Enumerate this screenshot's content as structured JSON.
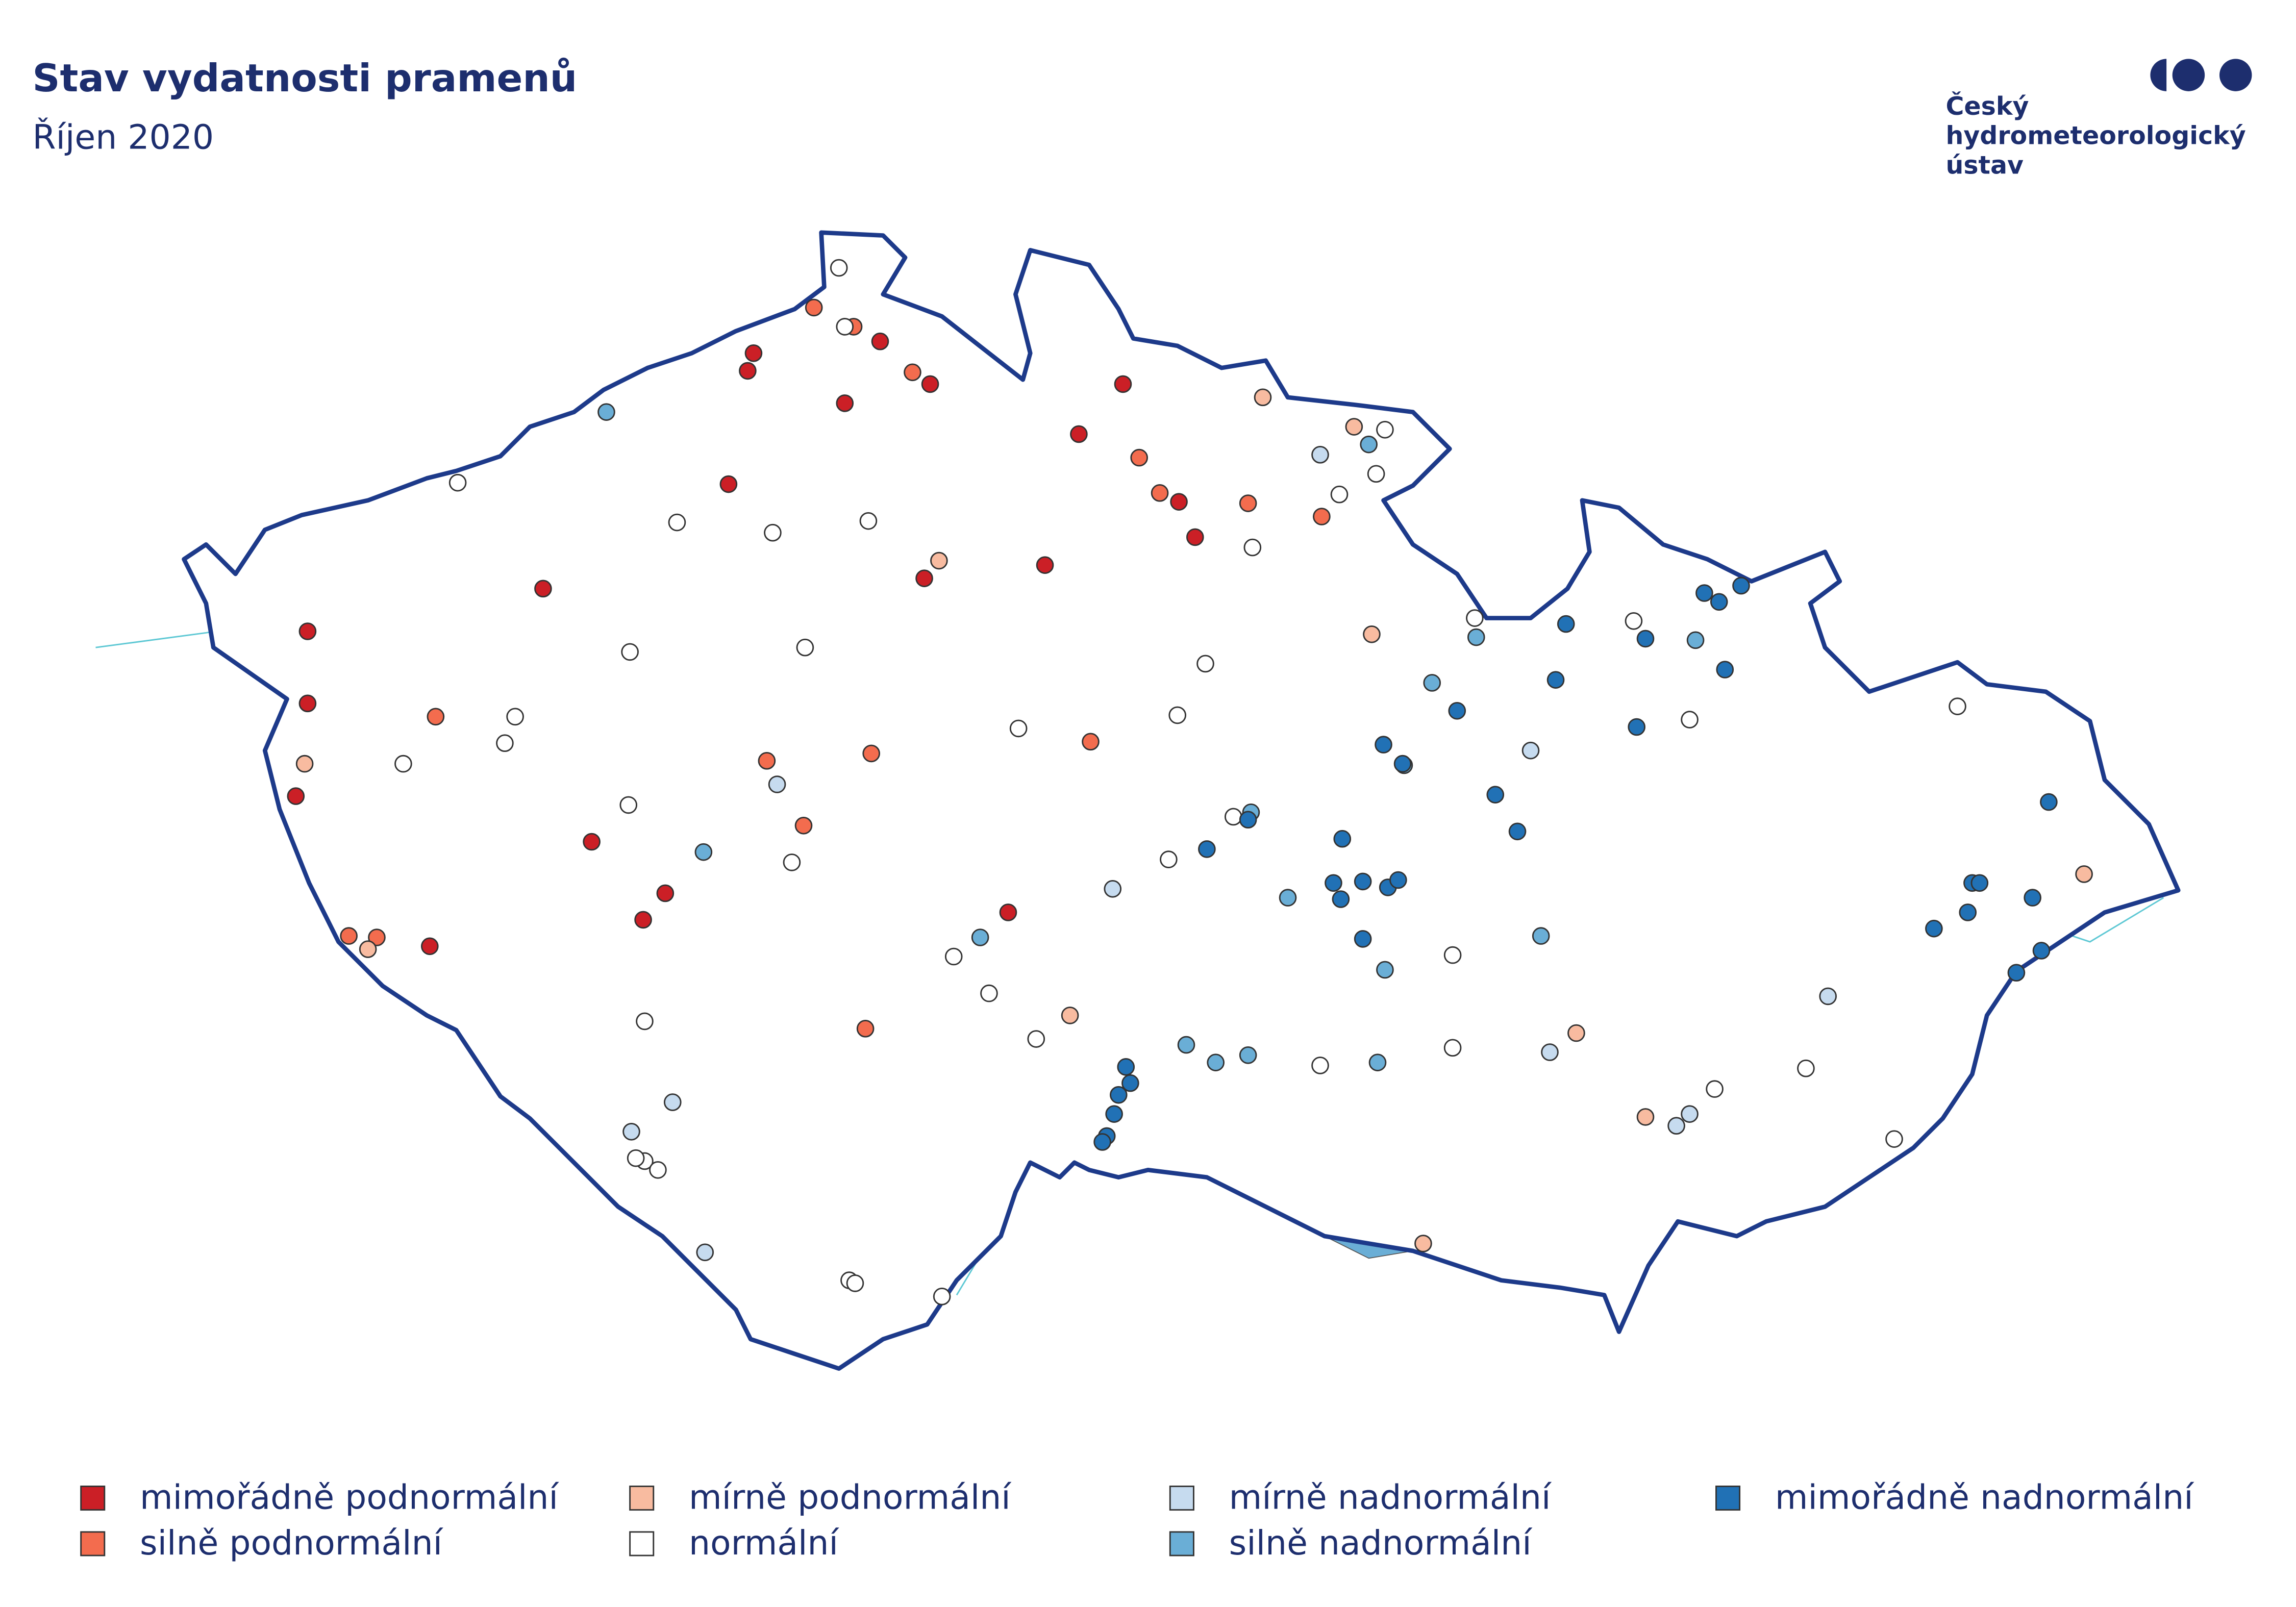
{
  "header": {
    "title": "Stav vydatnosti pramenů",
    "subtitle": "Říjen 2020"
  },
  "logo": {
    "lines": [
      "Český",
      "hydrometeorologický",
      "ústav"
    ]
  },
  "legend": {
    "items": [
      {
        "label": "mimořádně podnormální",
        "color": "#cb1f26"
      },
      {
        "label": "silně podnormální",
        "color": "#f36c4e"
      },
      {
        "label": "mírně podnormální",
        "color": "#f8bba0"
      },
      {
        "label": "normální",
        "color": "#ffffff"
      },
      {
        "label": "mírně nadnormální",
        "color": "#c6dbef"
      },
      {
        "label": "silně nadnormální",
        "color": "#6aaed6"
      },
      {
        "label": "mimořádně nadnormální",
        "color": "#2171b5"
      }
    ]
  }
}
